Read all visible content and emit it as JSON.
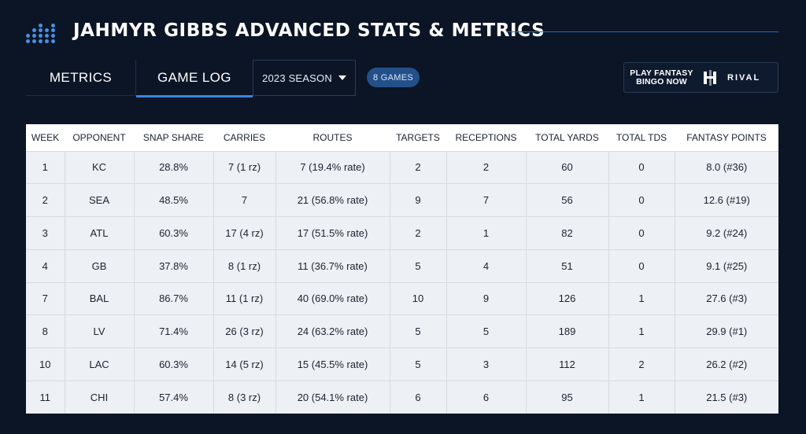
{
  "header": {
    "title": "JAHMYR GIBBS ADVANCED STATS & METRICS",
    "logo_icon": "dot-grid-logo-icon"
  },
  "tabs": [
    {
      "label": "METRICS",
      "active": false
    },
    {
      "label": "GAME LOG",
      "active": true
    }
  ],
  "season_select": {
    "value": "2023 SEASON",
    "icon": "chevron-down-icon"
  },
  "games_badge": "8 GAMES",
  "promo": {
    "line1": "PLAY FANTASY",
    "line2": "BINGO NOW",
    "brand": "RIVAL",
    "brand_icon": "rival-logo-icon"
  },
  "colors": {
    "background": "#0b1526",
    "accent": "#3a84e0",
    "badge": "#24508a",
    "row_bg": "#edf0f4"
  },
  "table": {
    "columns": [
      "WEEK",
      "OPPONENT",
      "SNAP SHARE",
      "CARRIES",
      "ROUTES",
      "TARGETS",
      "RECEPTIONS",
      "TOTAL YARDS",
      "TOTAL TDS",
      "FANTASY POINTS"
    ],
    "rows": [
      [
        "1",
        "KC",
        "28.8%",
        "7 (1 rz)",
        "7 (19.4% rate)",
        "2",
        "2",
        "60",
        "0",
        "8.0 (#36)"
      ],
      [
        "2",
        "SEA",
        "48.5%",
        "7",
        "21 (56.8% rate)",
        "9",
        "7",
        "56",
        "0",
        "12.6 (#19)"
      ],
      [
        "3",
        "ATL",
        "60.3%",
        "17 (4 rz)",
        "17 (51.5% rate)",
        "2",
        "1",
        "82",
        "0",
        "9.2 (#24)"
      ],
      [
        "4",
        "GB",
        "37.8%",
        "8 (1 rz)",
        "11 (36.7% rate)",
        "5",
        "4",
        "51",
        "0",
        "9.1 (#25)"
      ],
      [
        "7",
        "BAL",
        "86.7%",
        "11 (1 rz)",
        "40 (69.0% rate)",
        "10",
        "9",
        "126",
        "1",
        "27.6 (#3)"
      ],
      [
        "8",
        "LV",
        "71.4%",
        "26 (3 rz)",
        "24 (63.2% rate)",
        "5",
        "5",
        "189",
        "1",
        "29.9 (#1)"
      ],
      [
        "10",
        "LAC",
        "60.3%",
        "14 (5 rz)",
        "15 (45.5% rate)",
        "5",
        "3",
        "112",
        "2",
        "26.2 (#2)"
      ],
      [
        "11",
        "CHI",
        "57.4%",
        "8 (3 rz)",
        "20 (54.1% rate)",
        "6",
        "6",
        "95",
        "1",
        "21.5 (#3)"
      ]
    ]
  }
}
